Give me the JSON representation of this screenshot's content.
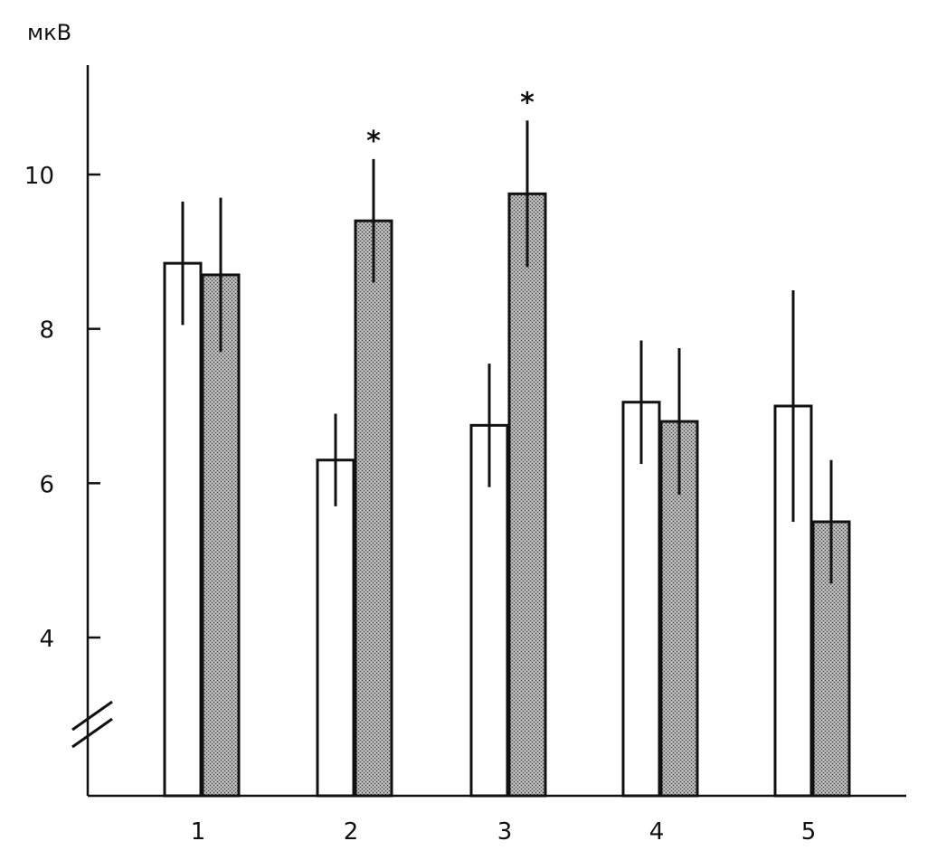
{
  "chart_data": {
    "type": "bar",
    "ylabel": "мкВ",
    "ylim": [
      2.0,
      11.3
    ],
    "y_axis_break": true,
    "yticks": [
      4,
      6,
      8,
      10
    ],
    "grid": false,
    "categories": [
      "1",
      "2",
      "3",
      "4",
      "5"
    ],
    "series": [
      {
        "fill": "#ffffff",
        "values": [
          8.85,
          6.3,
          6.75,
          7.05,
          7.0
        ],
        "errors": [
          0.8,
          0.6,
          0.8,
          0.8,
          1.5
        ]
      },
      {
        "fill": "#9a9a9a",
        "values": [
          8.7,
          9.4,
          9.75,
          6.8,
          5.5
        ],
        "errors": [
          1.0,
          0.8,
          0.95,
          0.95,
          0.8
        ]
      }
    ],
    "significance_marks": [
      {
        "category": "2",
        "label": "*"
      },
      {
        "category": "3",
        "label": "*"
      }
    ]
  }
}
